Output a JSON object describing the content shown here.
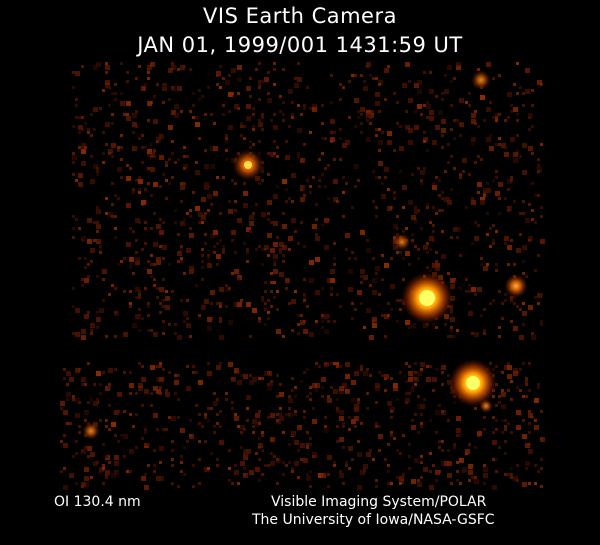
{
  "header": {
    "title": "VIS Earth Camera",
    "timestamp": "JAN 01, 1999/001 1431:59 UT"
  },
  "footer": {
    "filter": "OI  130.4 nm",
    "credit_line_1": "Visible Imaging System/POLAR",
    "credit_line_2": "The University of Iowa/NASA-GSFC"
  },
  "colors": {
    "background": "#000000",
    "text": "#ffffff",
    "glow_core": "#ffff66",
    "glow_mid": "#ff9a00",
    "glow_outer": "#8a2a00",
    "noise": "#5a1600"
  }
}
